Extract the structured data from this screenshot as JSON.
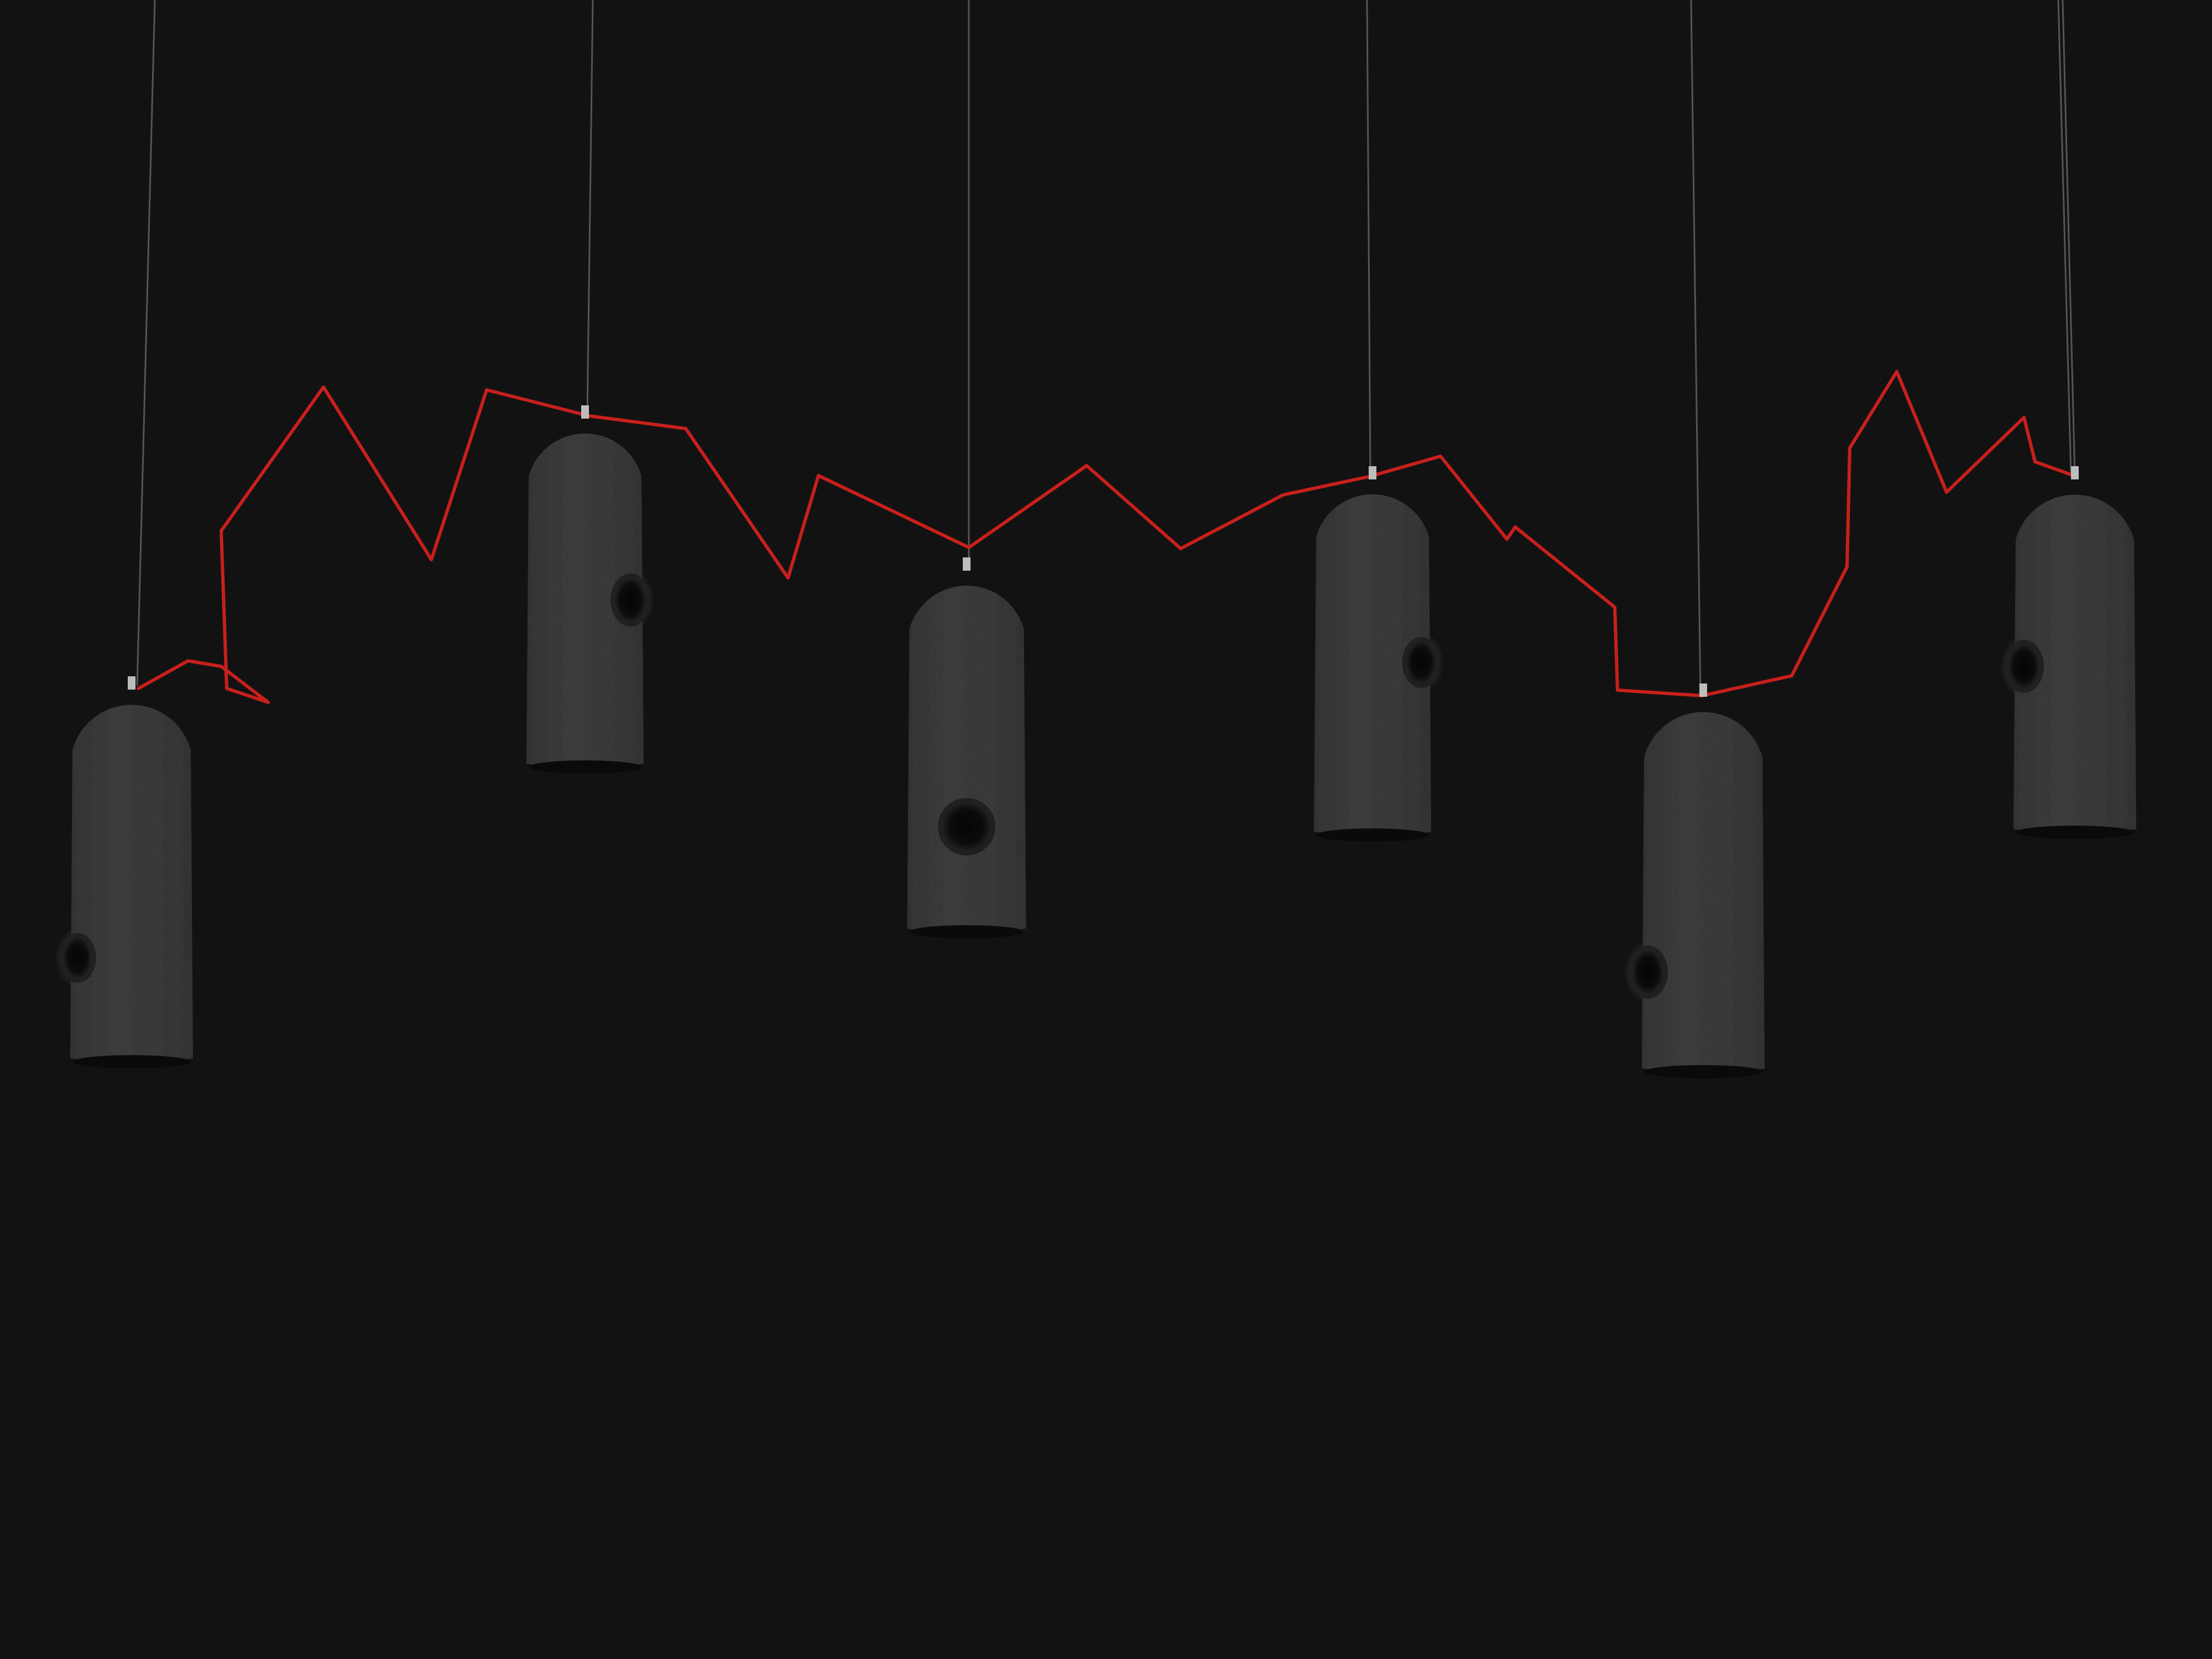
{
  "scene": {
    "background_color": "#121212",
    "cable_color": "#c8201c",
    "lamp_body_color": "#1b1b1b",
    "lamp_shade_shadow_color": "#0a0a0a",
    "suspension_wire_color": "#555555",
    "fitting_color": "#bdbdbd",
    "pendant_count": 6,
    "pendants": [
      {
        "id": "pendant-1",
        "opening_side": "left"
      },
      {
        "id": "pendant-2",
        "opening_side": "right"
      },
      {
        "id": "pendant-3",
        "opening_side": "front"
      },
      {
        "id": "pendant-4",
        "opening_side": "right"
      },
      {
        "id": "pendant-5",
        "opening_side": "left"
      },
      {
        "id": "pendant-6",
        "opening_side": "left"
      }
    ]
  }
}
